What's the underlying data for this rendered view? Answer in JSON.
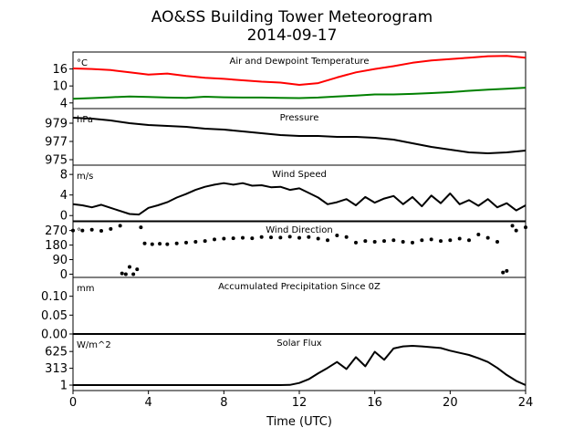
{
  "figure": {
    "title_line1": "AO&SS Building Tower Meteorogram",
    "title_line2": "2014-09-17",
    "xlabel": "Time (UTC)",
    "xticks": [
      0,
      4,
      8,
      12,
      16,
      20,
      24
    ],
    "xlim": [
      0,
      24
    ]
  },
  "chart_data": [
    {
      "type": "line",
      "title": "Air and Dewpoint Temperature",
      "ylabel": "°C",
      "ylim": [
        2,
        22
      ],
      "yticks": [
        4,
        10,
        16
      ],
      "x": [
        0,
        1,
        2,
        3,
        4,
        5,
        6,
        7,
        8,
        9,
        10,
        11,
        12,
        13,
        14,
        15,
        16,
        17,
        18,
        19,
        20,
        21,
        22,
        23,
        24
      ],
      "series": [
        {
          "color": "#ff0000",
          "values": [
            16.2,
            16.0,
            15.6,
            14.8,
            14.0,
            14.4,
            13.5,
            12.9,
            12.5,
            12.0,
            11.5,
            11.2,
            10.4,
            11.0,
            13.0,
            14.8,
            16.0,
            17.0,
            18.2,
            19.0,
            19.5,
            20.0,
            20.5,
            20.6,
            20.0
          ]
        },
        {
          "color": "#008000",
          "values": [
            5.5,
            5.7,
            6.0,
            6.3,
            6.1,
            5.9,
            5.8,
            6.2,
            6.0,
            5.9,
            5.9,
            5.8,
            5.7,
            5.9,
            6.3,
            6.6,
            7.0,
            7.0,
            7.2,
            7.5,
            7.8,
            8.3,
            8.7,
            9.0,
            9.4
          ]
        }
      ]
    },
    {
      "type": "line",
      "title": "Pressure",
      "ylabel": "hPa",
      "ylim": [
        974.4,
        980.6
      ],
      "yticks": [
        975,
        977,
        979
      ],
      "x": [
        0,
        1,
        2,
        3,
        4,
        5,
        6,
        7,
        8,
        9,
        10,
        11,
        12,
        13,
        14,
        15,
        16,
        17,
        18,
        19,
        20,
        21,
        22,
        23,
        24
      ],
      "series": [
        {
          "color": "#000000",
          "values": [
            979.6,
            979.5,
            979.3,
            979.0,
            978.8,
            978.7,
            978.6,
            978.4,
            978.3,
            978.1,
            977.9,
            977.7,
            977.6,
            977.6,
            977.5,
            977.5,
            977.4,
            977.2,
            976.8,
            976.4,
            976.1,
            975.8,
            975.7,
            975.8,
            976.0
          ]
        }
      ]
    },
    {
      "type": "line",
      "title": "Wind Speed",
      "ylabel": "m/s",
      "ylim": [
        -1.2,
        9.8
      ],
      "yticks": [
        0,
        4,
        8
      ],
      "x": [
        0,
        0.5,
        1,
        1.5,
        2,
        2.5,
        3,
        3.5,
        4,
        4.5,
        5,
        5.5,
        6,
        6.5,
        7,
        7.5,
        8,
        8.5,
        9,
        9.5,
        10,
        10.5,
        11,
        11.5,
        12,
        12.5,
        13,
        13.5,
        14,
        14.5,
        15,
        15.5,
        16,
        16.5,
        17,
        17.5,
        18,
        18.5,
        19,
        19.5,
        20,
        20.5,
        21,
        21.5,
        22,
        22.5,
        23,
        23.5,
        24
      ],
      "series": [
        {
          "color": "#000000",
          "values": [
            2.2,
            2.0,
            1.6,
            2.1,
            1.5,
            0.9,
            0.3,
            0.2,
            1.5,
            2.0,
            2.6,
            3.5,
            4.2,
            5.0,
            5.6,
            6.0,
            6.3,
            6.0,
            6.3,
            5.8,
            5.9,
            5.5,
            5.6,
            5.0,
            5.3,
            4.4,
            3.5,
            2.2,
            2.6,
            3.2,
            2.0,
            3.6,
            2.5,
            3.3,
            3.8,
            2.2,
            3.6,
            1.8,
            3.9,
            2.4,
            4.3,
            2.2,
            3.0,
            1.9,
            3.2,
            1.6,
            2.4,
            1.0,
            2.0
          ]
        }
      ]
    },
    {
      "type": "scatter",
      "title": "Wind Direction",
      "ylabel": "°",
      "ylim": [
        -20,
        330
      ],
      "yticks": [
        0,
        90,
        180,
        270
      ],
      "x": [
        0,
        0.5,
        1,
        1.5,
        2,
        2.5,
        2.6,
        2.8,
        3.0,
        3.2,
        3.4,
        3.6,
        3.8,
        4.2,
        4.6,
        5,
        5.5,
        6,
        6.5,
        7,
        7.5,
        8,
        8.5,
        9,
        9.5,
        10,
        10.5,
        11,
        11.5,
        12,
        12.5,
        13,
        13.5,
        14,
        14.5,
        15,
        15.5,
        16,
        16.5,
        17,
        17.5,
        18,
        18.5,
        19,
        19.5,
        20,
        20.5,
        21,
        21.5,
        22,
        22.5,
        22.8,
        23.0,
        23.3,
        23.5,
        24
      ],
      "series": [
        {
          "color": "#000000",
          "values": [
            270,
            270,
            275,
            268,
            280,
            300,
            5,
            0,
            45,
            0,
            30,
            290,
            190,
            185,
            188,
            185,
            190,
            195,
            200,
            205,
            215,
            220,
            222,
            225,
            222,
            230,
            228,
            226,
            232,
            225,
            230,
            220,
            210,
            240,
            230,
            195,
            205,
            200,
            205,
            210,
            200,
            195,
            210,
            215,
            205,
            210,
            220,
            210,
            245,
            225,
            200,
            10,
            20,
            300,
            270,
            290
          ]
        }
      ]
    },
    {
      "type": "line",
      "title": "Accumulated Precipitation Since 0Z",
      "ylabel": "mm",
      "ylim": [
        0,
        0.15
      ],
      "yticks": [
        0.0,
        0.05,
        0.1
      ],
      "ytick_labels": [
        "0.00",
        "0.05",
        "0.10"
      ],
      "x": [
        0,
        24
      ],
      "series": [
        {
          "color": "#000000",
          "values": [
            0,
            0
          ]
        }
      ]
    },
    {
      "type": "line",
      "title": "Solar Flux",
      "ylabel": "W/m^2",
      "ylim": [
        -100,
        950
      ],
      "yticks": [
        1,
        313,
        625
      ],
      "x": [
        0,
        1,
        2,
        3,
        4,
        5,
        6,
        7,
        8,
        9,
        10,
        11,
        11.5,
        12,
        12.5,
        13,
        13.5,
        14,
        14.5,
        15,
        15.5,
        16,
        16.5,
        17,
        17.5,
        18,
        18.5,
        19,
        19.5,
        20,
        20.5,
        21,
        21.5,
        22,
        22.5,
        23,
        23.5,
        24
      ],
      "series": [
        {
          "color": "#000000",
          "values": [
            1,
            1,
            1,
            1,
            1,
            1,
            1,
            1,
            1,
            1,
            1,
            1,
            5,
            40,
            110,
            220,
            320,
            430,
            300,
            520,
            350,
            620,
            470,
            680,
            720,
            730,
            720,
            705,
            690,
            640,
            600,
            560,
            500,
            430,
            320,
            190,
            80,
            1
          ]
        }
      ]
    }
  ]
}
